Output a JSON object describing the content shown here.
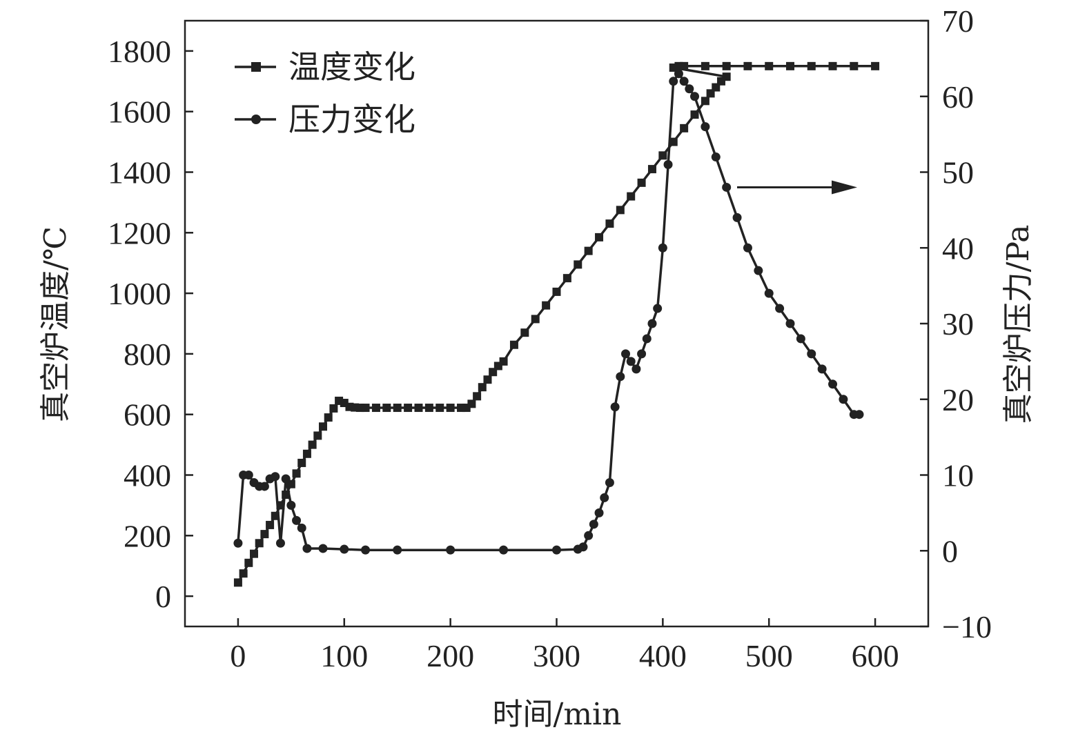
{
  "chart_data": {
    "type": "line",
    "xlabel": "时间/min",
    "ylabel_left": "真空炉温度/℃",
    "ylabel_right": "真空炉压力/Pa",
    "xlim": [
      -50,
      650
    ],
    "ylim_left": [
      -100,
      1900
    ],
    "ylim_right": [
      -10,
      70
    ],
    "x_ticks": [
      0,
      100,
      200,
      300,
      400,
      500,
      600
    ],
    "y_left_ticks": [
      0,
      200,
      400,
      600,
      800,
      1000,
      1200,
      1400,
      1600,
      1800
    ],
    "y_right_ticks": [
      -10,
      0,
      10,
      20,
      30,
      40,
      50,
      60,
      70
    ],
    "grid": false,
    "legend_position": "top-left",
    "series": [
      {
        "name": "温度变化",
        "axis": "left",
        "marker": "square",
        "color": "#222222",
        "points": [
          [
            0,
            45
          ],
          [
            5,
            75
          ],
          [
            10,
            110
          ],
          [
            15,
            140
          ],
          [
            20,
            175
          ],
          [
            25,
            205
          ],
          [
            30,
            235
          ],
          [
            35,
            265
          ],
          [
            40,
            300
          ],
          [
            45,
            335
          ],
          [
            50,
            370
          ],
          [
            55,
            405
          ],
          [
            60,
            440
          ],
          [
            65,
            470
          ],
          [
            70,
            500
          ],
          [
            75,
            530
          ],
          [
            80,
            560
          ],
          [
            85,
            590
          ],
          [
            90,
            620
          ],
          [
            95,
            645
          ],
          [
            100,
            638
          ],
          [
            105,
            625
          ],
          [
            110,
            623
          ],
          [
            115,
            622
          ],
          [
            120,
            622
          ],
          [
            130,
            622
          ],
          [
            140,
            622
          ],
          [
            150,
            622
          ],
          [
            160,
            622
          ],
          [
            170,
            622
          ],
          [
            180,
            622
          ],
          [
            190,
            622
          ],
          [
            200,
            622
          ],
          [
            210,
            622
          ],
          [
            215,
            622
          ],
          [
            220,
            635
          ],
          [
            225,
            660
          ],
          [
            230,
            690
          ],
          [
            235,
            715
          ],
          [
            240,
            740
          ],
          [
            245,
            760
          ],
          [
            250,
            775
          ],
          [
            260,
            830
          ],
          [
            270,
            870
          ],
          [
            280,
            915
          ],
          [
            290,
            960
          ],
          [
            300,
            1005
          ],
          [
            310,
            1050
          ],
          [
            320,
            1095
          ],
          [
            330,
            1140
          ],
          [
            340,
            1185
          ],
          [
            350,
            1230
          ],
          [
            360,
            1275
          ],
          [
            370,
            1320
          ],
          [
            380,
            1365
          ],
          [
            390,
            1410
          ],
          [
            400,
            1455
          ],
          [
            410,
            1500
          ],
          [
            420,
            1545
          ],
          [
            430,
            1590
          ],
          [
            440,
            1635
          ],
          [
            445,
            1660
          ],
          [
            450,
            1680
          ],
          [
            455,
            1700
          ],
          [
            460,
            1715
          ],
          [
            410,
            1745
          ],
          [
            415,
            1750
          ],
          [
            420,
            1750
          ],
          [
            440,
            1750
          ],
          [
            460,
            1750
          ],
          [
            480,
            1750
          ],
          [
            500,
            1750
          ],
          [
            520,
            1750
          ],
          [
            540,
            1750
          ],
          [
            560,
            1750
          ],
          [
            580,
            1750
          ],
          [
            600,
            1750
          ]
        ]
      },
      {
        "name": "压力变化",
        "axis": "right",
        "marker": "circle",
        "color": "#222222",
        "points": [
          [
            0,
            1
          ],
          [
            5,
            10
          ],
          [
            10,
            10
          ],
          [
            15,
            9
          ],
          [
            20,
            8.5
          ],
          [
            25,
            8.5
          ],
          [
            30,
            9.5
          ],
          [
            35,
            9.8
          ],
          [
            40,
            1
          ],
          [
            45,
            9.5
          ],
          [
            50,
            6
          ],
          [
            55,
            4
          ],
          [
            60,
            3
          ],
          [
            65,
            0.3
          ],
          [
            80,
            0.3
          ],
          [
            100,
            0.2
          ],
          [
            120,
            0.1
          ],
          [
            150,
            0.1
          ],
          [
            200,
            0.1
          ],
          [
            250,
            0.1
          ],
          [
            300,
            0.1
          ],
          [
            320,
            0.2
          ],
          [
            325,
            0.5
          ],
          [
            330,
            2
          ],
          [
            335,
            3.5
          ],
          [
            340,
            5
          ],
          [
            345,
            7
          ],
          [
            350,
            9
          ],
          [
            355,
            19
          ],
          [
            360,
            23
          ],
          [
            365,
            26
          ],
          [
            370,
            25
          ],
          [
            375,
            24
          ],
          [
            380,
            26
          ],
          [
            385,
            28
          ],
          [
            390,
            30
          ],
          [
            395,
            32
          ],
          [
            400,
            40
          ],
          [
            405,
            51
          ],
          [
            410,
            62
          ],
          [
            415,
            63
          ],
          [
            420,
            62
          ],
          [
            425,
            61
          ],
          [
            430,
            60
          ],
          [
            440,
            56
          ],
          [
            450,
            52
          ],
          [
            460,
            48
          ],
          [
            470,
            44
          ],
          [
            480,
            40
          ],
          [
            490,
            37
          ],
          [
            500,
            34
          ],
          [
            510,
            32
          ],
          [
            520,
            30
          ],
          [
            530,
            28
          ],
          [
            540,
            26
          ],
          [
            550,
            24
          ],
          [
            560,
            22
          ],
          [
            570,
            20
          ],
          [
            580,
            18
          ],
          [
            585,
            18
          ]
        ]
      }
    ],
    "annotation": {
      "type": "arrow",
      "direction": "right",
      "points_to_axis": "right"
    }
  }
}
